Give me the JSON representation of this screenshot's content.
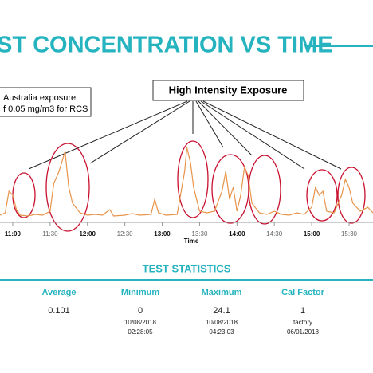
{
  "chart_data": {
    "type": "line",
    "title": "ST CONCENTRATION VS TIME",
    "annotations": [
      "Australia exposure",
      "f 0.05 mg/m3 for RCS",
      "High Intensity Exposure"
    ],
    "x_label": "Time",
    "xlim": [
      10.83,
      15.82
    ],
    "xticks": [
      {
        "value": 11,
        "label": "11:00"
      },
      {
        "value": 11.5,
        "label": "11:30"
      },
      {
        "value": 12,
        "label": "12:00"
      },
      {
        "value": 12.5,
        "label": "12:30"
      },
      {
        "value": 13,
        "label": "13:00"
      },
      {
        "value": 13.5,
        "label": "13:30"
      },
      {
        "value": 14,
        "label": "14:00"
      },
      {
        "value": 14.5,
        "label": "14:30"
      },
      {
        "value": 15,
        "label": "15:00"
      },
      {
        "value": 15.5,
        "label": "15:30"
      }
    ],
    "ylim": [
      0,
      100
    ],
    "x": [
      10.83,
      10.9,
      10.95,
      11.0,
      11.05,
      11.1,
      11.2,
      11.3,
      11.4,
      11.5,
      11.55,
      11.62,
      11.7,
      11.75,
      11.8,
      11.9,
      12.0,
      12.1,
      12.2,
      12.3,
      12.35,
      12.5,
      12.6,
      12.7,
      12.85,
      12.9,
      12.95,
      13.05,
      13.2,
      13.3,
      13.33,
      13.38,
      13.42,
      13.5,
      13.6,
      13.7,
      13.8,
      13.85,
      13.9,
      13.95,
      14.0,
      14.05,
      14.1,
      14.15,
      14.2,
      14.3,
      14.4,
      14.5,
      14.6,
      14.7,
      14.8,
      14.9,
      15.0,
      15.05,
      15.1,
      15.15,
      15.2,
      15.3,
      15.4,
      15.45,
      15.5,
      15.55,
      15.65,
      15.75,
      15.82
    ],
    "series": [
      {
        "color": "#e8944a",
        "values": [
          5,
          8,
          35,
          30,
          12,
          5,
          4,
          6,
          5,
          10,
          45,
          60,
          85,
          40,
          20,
          8,
          5,
          6,
          5,
          12,
          4,
          5,
          7,
          5,
          6,
          25,
          8,
          5,
          6,
          60,
          90,
          70,
          40,
          10,
          8,
          10,
          35,
          60,
          25,
          40,
          10,
          30,
          65,
          55,
          20,
          8,
          6,
          10,
          6,
          5,
          8,
          6,
          15,
          40,
          30,
          35,
          10,
          8,
          30,
          50,
          40,
          20,
          10,
          15,
          8
        ]
      }
    ]
  },
  "table": {
    "title": "TEST STATISTICS",
    "columns": [
      {
        "header": "Average",
        "lines": [
          "0.101"
        ]
      },
      {
        "header": "Minimum",
        "lines": [
          "0",
          "10/08/2018",
          "02:28:05"
        ]
      },
      {
        "header": "Maximum",
        "lines": [
          "24.1",
          "10/08/2018",
          "04:23:03"
        ]
      },
      {
        "header": "Cal Factor",
        "lines": [
          "1",
          "factory",
          "06/01/2018"
        ]
      }
    ]
  }
}
